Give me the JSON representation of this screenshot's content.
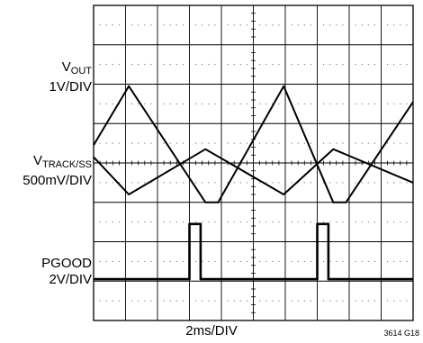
{
  "chart_data": {
    "type": "line",
    "grid": true,
    "divisions": {
      "x": 10,
      "y": 8
    },
    "xlabel": "2ms/DIV",
    "figure_id": "3614 G18",
    "channels": [
      {
        "id": "vout",
        "label_main": "V",
        "label_sub": "OUT",
        "scale": "1V/DIV",
        "points": [
          [
            0,
            4.45
          ],
          [
            1.1,
            5.95
          ],
          [
            3.5,
            3.0
          ],
          [
            3.9,
            3.0
          ],
          [
            5.95,
            5.95
          ],
          [
            7.5,
            3.0
          ],
          [
            7.9,
            3.0
          ],
          [
            10,
            5.55
          ]
        ]
      },
      {
        "id": "vtrack",
        "label_main": "V",
        "label_sub": "TRACK/SS",
        "scale": "500mV/DIV",
        "points": [
          [
            0,
            4.15
          ],
          [
            1.1,
            3.2
          ],
          [
            3.5,
            4.35
          ],
          [
            5.95,
            3.2
          ],
          [
            7.5,
            4.35
          ],
          [
            10,
            3.5
          ]
        ]
      },
      {
        "id": "pgood",
        "label_main": "PGOOD",
        "label_sub": "",
        "scale": "2V/DIV",
        "points": [
          [
            0,
            1.05
          ],
          [
            3.0,
            1.05
          ],
          [
            3.0,
            2.45
          ],
          [
            3.35,
            2.45
          ],
          [
            3.35,
            1.05
          ],
          [
            7.0,
            1.05
          ],
          [
            7.0,
            2.45
          ],
          [
            7.35,
            2.45
          ],
          [
            7.35,
            1.05
          ],
          [
            10,
            1.05
          ]
        ]
      }
    ]
  }
}
